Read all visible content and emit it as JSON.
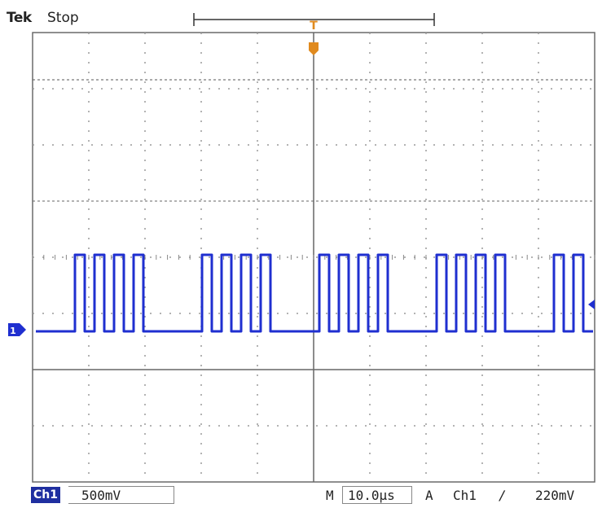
{
  "header": {
    "brand": "Tek",
    "run_state": "Stop"
  },
  "markers": {
    "trigger_position": "T",
    "channel_ground": "1"
  },
  "status_bar": {
    "channel_badge": "Ch1",
    "volts_per_div": "500mV",
    "timebase_prefix": "M",
    "time_per_div": "10.0µs",
    "acquire_mode": "A",
    "trigger_source": "Ch1",
    "trigger_slope": "∕",
    "trigger_level": "220mV"
  },
  "colors": {
    "trace": "#1f2fd0",
    "trigger_marker": "#e08a1e",
    "grid": "#9a9a9a",
    "graticule_border": "#6a6a6a"
  },
  "signal": {
    "bit_period_us": 2.5,
    "bits": [
      0,
      0,
      0,
      0,
      1,
      0,
      1,
      0,
      1,
      0,
      1,
      0,
      0,
      0,
      0,
      0,
      0,
      1,
      0,
      1,
      0,
      1,
      0,
      1,
      0,
      0,
      0,
      0,
      0,
      1,
      0,
      1,
      0,
      1,
      0,
      1,
      0,
      0,
      0,
      0,
      0,
      1,
      0,
      1,
      0,
      1,
      0,
      1,
      0,
      0,
      0,
      0,
      0,
      1,
      0,
      1,
      0
    ]
  }
}
